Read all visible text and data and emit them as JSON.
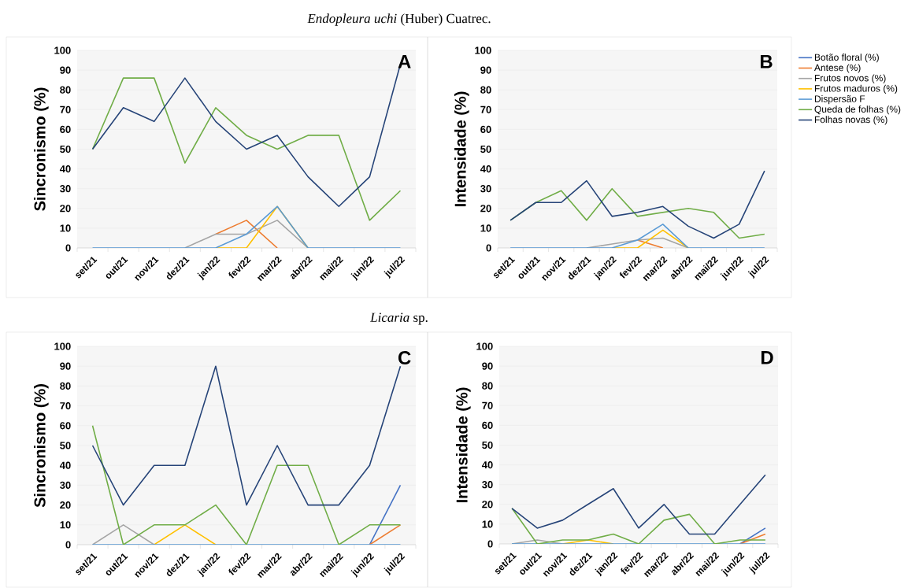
{
  "chart_data": [
    {
      "type": "line",
      "title": "*Endopleura uchi* (Huber) Cuatrec.",
      "ylabel": "Sincronismo (%)",
      "annotations": [
        "A"
      ],
      "categories": [
        "set/21",
        "out/21",
        "nov/21",
        "dez/21",
        "jan/22",
        "fev/22",
        "mar/22",
        "abr/22",
        "mai/22",
        "jun/22",
        "jul/22"
      ],
      "ylim": [
        0,
        100
      ],
      "yticks": [
        0,
        10,
        20,
        30,
        40,
        50,
        60,
        70,
        80,
        90,
        100
      ],
      "grid": "y",
      "series": [
        {
          "color": "#ed7d31",
          "values": [
            null,
            null,
            null,
            null,
            7,
            14,
            0,
            null,
            null,
            null,
            null
          ]
        },
        {
          "color": "#a5a5a5",
          "values": [
            null,
            null,
            null,
            0,
            7,
            7,
            14,
            0,
            null,
            null,
            null
          ]
        },
        {
          "color": "#ffc000",
          "values": [
            null,
            null,
            null,
            null,
            0,
            0,
            21,
            0,
            null,
            null,
            null
          ]
        },
        {
          "color": "#5b9bd5",
          "values": [
            0,
            0,
            0,
            0,
            0,
            7,
            21,
            0,
            0,
            0,
            0
          ]
        },
        {
          "color": "#70ad47",
          "values": [
            50,
            86,
            86,
            43,
            71,
            57,
            50,
            57,
            57,
            14,
            29
          ]
        },
        {
          "color": "#264478",
          "values": [
            50,
            71,
            64,
            86,
            64,
            50,
            57,
            36,
            21,
            36,
            93
          ]
        }
      ]
    },
    {
      "type": "line",
      "ylabel": "Intensidade (%)",
      "annotations": [
        "B"
      ],
      "legend": "right",
      "categories": [
        "set/21",
        "out/21",
        "nov/21",
        "dez/21",
        "jan/22",
        "fev/22",
        "mar/22",
        "abr/22",
        "mai/22",
        "jun/22",
        "jul/22"
      ],
      "ylim": [
        0,
        100
      ],
      "yticks": [
        0,
        10,
        20,
        30,
        40,
        50,
        60,
        70,
        80,
        90,
        100
      ],
      "grid": "y",
      "series": [
        {
          "name": "Botão floral (%)",
          "color": "#4472c4",
          "values": [
            null,
            null,
            null,
            null,
            null,
            null,
            null,
            null,
            null,
            null,
            null
          ]
        },
        {
          "name": "Antese (%)",
          "color": "#ed7d31",
          "values": [
            null,
            null,
            null,
            null,
            null,
            4,
            0,
            null,
            null,
            null,
            null
          ]
        },
        {
          "name": "Frutos novos (%)",
          "color": "#a5a5a5",
          "values": [
            null,
            null,
            null,
            0,
            2,
            4,
            5,
            0,
            null,
            null,
            null
          ]
        },
        {
          "name": "Frutos maduros (%)",
          "color": "#ffc000",
          "values": [
            null,
            null,
            null,
            null,
            0,
            0,
            9,
            0,
            null,
            null,
            null
          ]
        },
        {
          "name": "Dispersão F",
          "color": "#5b9bd5",
          "values": [
            0,
            0,
            0,
            0,
            0,
            4,
            12,
            0,
            0,
            0,
            0
          ]
        },
        {
          "name": "Queda de folhas (%)",
          "color": "#70ad47",
          "values": [
            14,
            23,
            29,
            14,
            30,
            16,
            18,
            20,
            18,
            5,
            7
          ]
        },
        {
          "name": "Folhas novas (%)",
          "color": "#264478",
          "values": [
            14,
            23,
            23,
            34,
            16,
            18,
            21,
            11,
            5,
            12,
            39
          ]
        }
      ]
    },
    {
      "type": "line",
      "title": "*Licaria* sp.",
      "ylabel": "Sincronismo (%)",
      "annotations": [
        "C"
      ],
      "categories": [
        "set/21",
        "out/21",
        "nov/21",
        "dez/21",
        "jan/22",
        "fev/22",
        "mar/22",
        "abr/22",
        "mai/22",
        "jun/22",
        "jul/22"
      ],
      "ylim": [
        0,
        100
      ],
      "yticks": [
        0,
        10,
        20,
        30,
        40,
        50,
        60,
        70,
        80,
        90,
        100
      ],
      "grid": "y",
      "series": [
        {
          "color": "#4472c4",
          "values": [
            null,
            null,
            null,
            null,
            null,
            null,
            null,
            null,
            null,
            0,
            30
          ]
        },
        {
          "color": "#ed7d31",
          "values": [
            null,
            null,
            null,
            null,
            null,
            null,
            null,
            null,
            null,
            0,
            10
          ]
        },
        {
          "color": "#a5a5a5",
          "values": [
            0,
            10,
            0,
            null,
            null,
            null,
            null,
            null,
            null,
            null,
            null
          ]
        },
        {
          "color": "#ffc000",
          "values": [
            null,
            null,
            0,
            10,
            0,
            null,
            null,
            null,
            null,
            null,
            null
          ]
        },
        {
          "color": "#5b9bd5",
          "values": [
            0,
            0,
            0,
            0,
            0,
            0,
            0,
            0,
            0,
            0,
            0
          ]
        },
        {
          "color": "#70ad47",
          "values": [
            60,
            0,
            10,
            10,
            20,
            0,
            40,
            40,
            0,
            10,
            10
          ]
        },
        {
          "color": "#264478",
          "values": [
            50,
            20,
            40,
            40,
            90,
            20,
            50,
            20,
            20,
            40,
            90
          ]
        }
      ]
    },
    {
      "type": "line",
      "ylabel": "Intensidade (%)",
      "annotations": [
        "D"
      ],
      "categories": [
        "set/21",
        "out/21",
        "nov/21",
        "dez/21",
        "jan/22",
        "fev/22",
        "mar/22",
        "abr/22",
        "mai/22",
        "jun/22",
        "jul/22"
      ],
      "ylim": [
        0,
        100
      ],
      "yticks": [
        0,
        10,
        20,
        30,
        40,
        50,
        60,
        70,
        80,
        90,
        100
      ],
      "grid": "y",
      "series": [
        {
          "color": "#4472c4",
          "values": [
            null,
            null,
            null,
            null,
            null,
            null,
            null,
            null,
            null,
            0,
            8
          ]
        },
        {
          "color": "#ed7d31",
          "values": [
            null,
            null,
            null,
            null,
            null,
            null,
            null,
            null,
            null,
            0,
            5
          ]
        },
        {
          "color": "#a5a5a5",
          "values": [
            0,
            2,
            0,
            null,
            null,
            null,
            null,
            null,
            null,
            null,
            null
          ]
        },
        {
          "color": "#ffc000",
          "values": [
            null,
            null,
            0,
            2,
            0,
            null,
            null,
            null,
            null,
            null,
            null
          ]
        },
        {
          "color": "#5b9bd5",
          "values": [
            0,
            0,
            0,
            0,
            0,
            0,
            0,
            0,
            0,
            0,
            0
          ]
        },
        {
          "color": "#70ad47",
          "values": [
            18,
            0,
            2,
            2,
            5,
            0,
            12,
            15,
            0,
            2,
            2
          ]
        },
        {
          "color": "#264478",
          "values": [
            18,
            8,
            12,
            20,
            28,
            8,
            20,
            5,
            5,
            20,
            35
          ]
        }
      ]
    }
  ]
}
